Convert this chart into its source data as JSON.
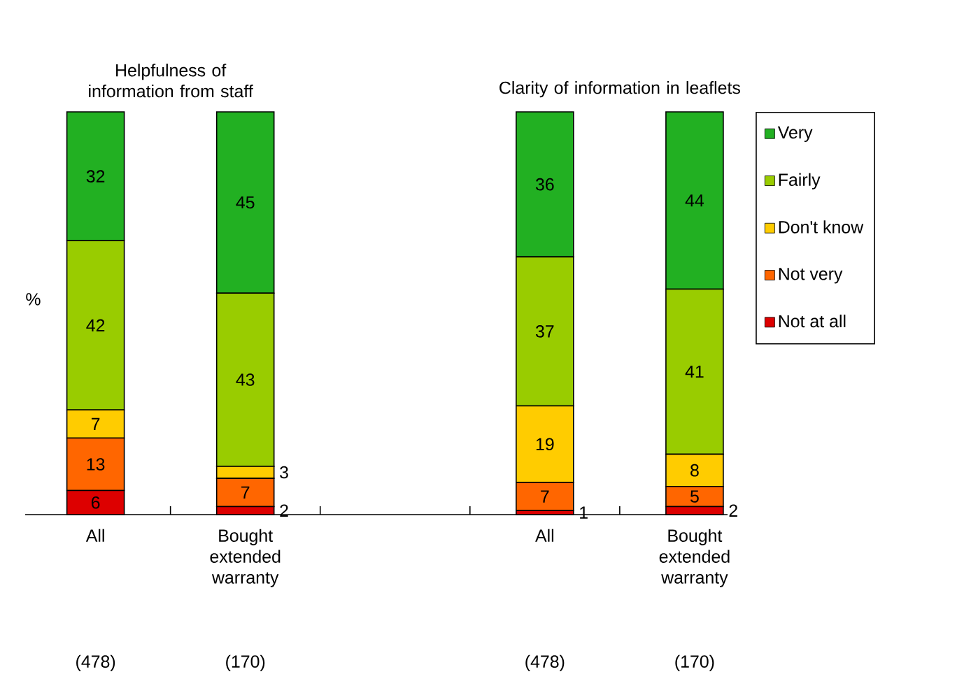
{
  "chart_data": {
    "type": "bar",
    "stacked": true,
    "ylabel": "%",
    "categories": [
      "All",
      "Bought extended warranty",
      null,
      "All",
      "Bought extended warranty"
    ],
    "series": [
      {
        "name": "Not at all",
        "color": "#dd0000",
        "values": [
          6,
          2,
          null,
          1,
          2
        ]
      },
      {
        "name": "Not very",
        "color": "#ff6600",
        "values": [
          13,
          7,
          null,
          7,
          5
        ]
      },
      {
        "name": "Don't know",
        "color": "#ffcc00",
        "values": [
          7,
          3,
          null,
          19,
          8
        ]
      },
      {
        "name": "Fairly",
        "color": "#99cc00",
        "values": [
          42,
          43,
          null,
          37,
          41
        ]
      },
      {
        "name": "Very",
        "color": "#22b022",
        "values": [
          32,
          45,
          null,
          36,
          44
        ]
      }
    ],
    "data_labels": true,
    "legend": "right",
    "annotations": [
      "Helpfulness of information from staff",
      "Clarity of information in leaflets",
      "(478)",
      "(170)",
      "(478)",
      "(170)"
    ]
  }
}
